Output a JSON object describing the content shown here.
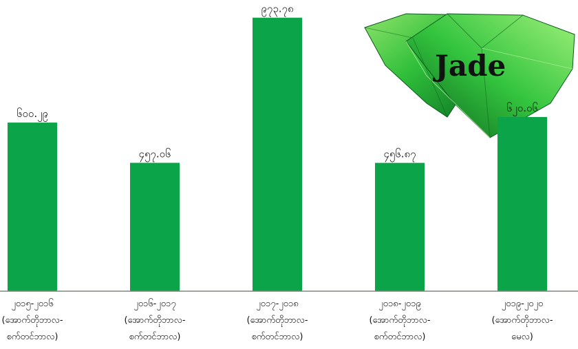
{
  "chart_data": {
    "type": "bar",
    "title": "",
    "xlabel": "",
    "ylabel": "",
    "categories": [
      [
        "၂၀၁၅-၂၀၁၆",
        "(အောက်တိုဘာလ-",
        "စက်တင်ဘာလ)"
      ],
      [
        "၂၀၁၆-၂၀၁၇",
        "(အောက်တိုဘာလ-",
        "စက်တင်ဘာလ)"
      ],
      [
        "၂၀၁၇-၂၀၁၈",
        "(အောက်တိုဘာလ-",
        "စက်တင်ဘာလ)"
      ],
      [
        "၂၀၁၈-၂၀၁၉",
        "(အောက်တိုဘာလ-",
        "စက်တင်ဘာလ)"
      ],
      [
        "၂၀၁၉-၂၀၂၀",
        "(အောက်တိုဘာလ-",
        "မေလ)"
      ]
    ],
    "values": [
      600.29,
      457.06,
      973.78,
      456.87,
      620.06
    ],
    "value_labels": [
      "၆၀၀.၂၉",
      "၄၅၇.၀၆",
      "၉၇၃.၇၈",
      "၄၅၆.၈၇",
      "၆၂၀.၀၆"
    ],
    "ylim": [
      0,
      1000
    ],
    "grid": false,
    "legend": "none",
    "bar_color": "#0ca448"
  },
  "logo": {
    "text": "Jade",
    "icon": "jade-gem-icon",
    "colors": [
      "#0b6e22",
      "#2fbf3a",
      "#8fe36a"
    ]
  }
}
